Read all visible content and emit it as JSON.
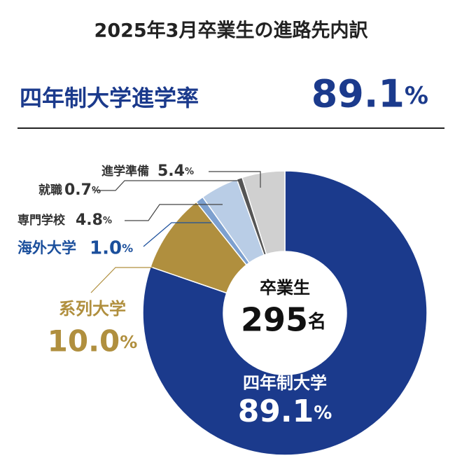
{
  "chart_data": {
    "type": "pie",
    "donut": true,
    "title": "2025年3月卒業生の進路先内訳",
    "center_label": "卒業生",
    "center_value": "295名",
    "categories": [
      "四年制大学",
      "系列大学",
      "海外大学",
      "専門学校",
      "就職",
      "進学準備"
    ],
    "values": [
      89.1,
      10.0,
      1.0,
      4.8,
      0.7,
      5.4
    ],
    "value_labels": [
      "89.1%",
      "10.0%",
      "1.0%",
      "4.8%",
      "0.7%",
      "5.4%"
    ],
    "colors": [
      "#1b3a8c",
      "#b08f3e",
      "#7da0cf",
      "#b9cde6",
      "#555555",
      "#d0d0d0"
    ]
  },
  "headline": {
    "label": "四年制大学進学率",
    "value": "89.1%"
  }
}
